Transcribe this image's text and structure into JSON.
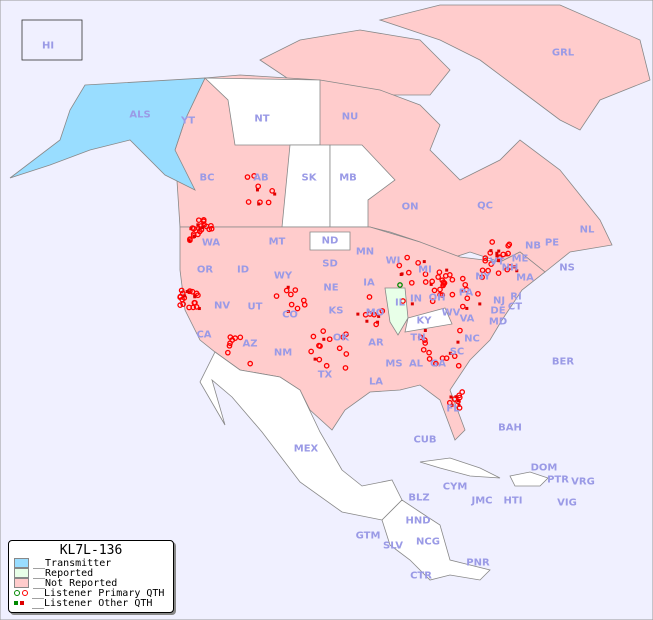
{
  "colors": {
    "ocean": "#f0f0ff",
    "transmitter": "#99ddff",
    "reported": "#e8ffe8",
    "not_reported": "#ffcccc",
    "none": "#ffffff",
    "primary_marker": "#ff0000",
    "other_marker": "#dd0000",
    "primary_marker_reporter": "#008800",
    "label": "#9a9ae6"
  },
  "legend": {
    "title": "KL7L-136",
    "items": [
      {
        "label": "__Transmitter",
        "kind": "swatch",
        "color": "#99ddff"
      },
      {
        "label": "__Reported",
        "kind": "swatch",
        "color": "#e8ffe8"
      },
      {
        "label": "__Not Reported",
        "kind": "swatch",
        "color": "#ffcccc"
      },
      {
        "label": "__Listener Primary QTH",
        "kind": "circle"
      },
      {
        "label": "__Listener Other QTH",
        "kind": "square"
      }
    ]
  },
  "regions": [
    {
      "code": "HI",
      "status": "not_reported"
    },
    {
      "code": "ALS",
      "status": "transmitter"
    },
    {
      "code": "YT",
      "status": "not_reported"
    },
    {
      "code": "NT",
      "status": "none"
    },
    {
      "code": "NU",
      "status": "not_reported"
    },
    {
      "code": "GRL",
      "status": "not_reported"
    },
    {
      "code": "BC",
      "status": "not_reported"
    },
    {
      "code": "AB",
      "status": "not_reported"
    },
    {
      "code": "SK",
      "status": "none"
    },
    {
      "code": "MB",
      "status": "none"
    },
    {
      "code": "ON",
      "status": "not_reported"
    },
    {
      "code": "QC",
      "status": "not_reported"
    },
    {
      "code": "NL",
      "status": "not_reported"
    },
    {
      "code": "PE",
      "status": "not_reported"
    },
    {
      "code": "NB",
      "status": "not_reported"
    },
    {
      "code": "NS",
      "status": "not_reported"
    },
    {
      "code": "ME",
      "status": "not_reported"
    },
    {
      "code": "VT",
      "status": "not_reported"
    },
    {
      "code": "NH",
      "status": "not_reported"
    },
    {
      "code": "MA",
      "status": "not_reported"
    },
    {
      "code": "NY",
      "status": "not_reported"
    },
    {
      "code": "RI",
      "status": "not_reported"
    },
    {
      "code": "CT",
      "status": "not_reported"
    },
    {
      "code": "NJ",
      "status": "not_reported"
    },
    {
      "code": "DE",
      "status": "not_reported"
    },
    {
      "code": "MD",
      "status": "not_reported"
    },
    {
      "code": "PA",
      "status": "not_reported"
    },
    {
      "code": "VA",
      "status": "not_reported"
    },
    {
      "code": "WV",
      "status": "not_reported"
    },
    {
      "code": "OH",
      "status": "not_reported"
    },
    {
      "code": "IN",
      "status": "not_reported"
    },
    {
      "code": "IL",
      "status": "reported"
    },
    {
      "code": "KY",
      "status": "none"
    },
    {
      "code": "MI",
      "status": "not_reported"
    },
    {
      "code": "WI",
      "status": "not_reported"
    },
    {
      "code": "MN",
      "status": "not_reported"
    },
    {
      "code": "ND",
      "status": "none"
    },
    {
      "code": "SD",
      "status": "not_reported"
    },
    {
      "code": "NE",
      "status": "not_reported"
    },
    {
      "code": "IA",
      "status": "not_reported"
    },
    {
      "code": "MO",
      "status": "not_reported"
    },
    {
      "code": "KS",
      "status": "not_reported"
    },
    {
      "code": "OK",
      "status": "not_reported"
    },
    {
      "code": "AR",
      "status": "not_reported"
    },
    {
      "code": "TN",
      "status": "not_reported"
    },
    {
      "code": "NC",
      "status": "not_reported"
    },
    {
      "code": "SC",
      "status": "not_reported"
    },
    {
      "code": "GA",
      "status": "not_reported"
    },
    {
      "code": "AL",
      "status": "not_reported"
    },
    {
      "code": "MS",
      "status": "not_reported"
    },
    {
      "code": "LA",
      "status": "not_reported"
    },
    {
      "code": "TX",
      "status": "not_reported"
    },
    {
      "code": "NM",
      "status": "not_reported"
    },
    {
      "code": "AZ",
      "status": "not_reported"
    },
    {
      "code": "UT",
      "status": "not_reported"
    },
    {
      "code": "CO",
      "status": "not_reported"
    },
    {
      "code": "WY",
      "status": "not_reported"
    },
    {
      "code": "MT",
      "status": "not_reported"
    },
    {
      "code": "ID",
      "status": "not_reported"
    },
    {
      "code": "WA",
      "status": "not_reported"
    },
    {
      "code": "OR",
      "status": "not_reported"
    },
    {
      "code": "NV",
      "status": "not_reported"
    },
    {
      "code": "CA",
      "status": "not_reported"
    },
    {
      "code": "FL",
      "status": "not_reported"
    },
    {
      "code": "BER",
      "status": "none"
    },
    {
      "code": "BAH",
      "status": "none"
    },
    {
      "code": "CUB",
      "status": "none"
    },
    {
      "code": "MEX",
      "status": "none"
    },
    {
      "code": "DOM",
      "status": "none"
    },
    {
      "code": "PTR",
      "status": "not_reported"
    },
    {
      "code": "VRG",
      "status": "none"
    },
    {
      "code": "CYM",
      "status": "none"
    },
    {
      "code": "JMC",
      "status": "none"
    },
    {
      "code": "HTI",
      "status": "none"
    },
    {
      "code": "VIG",
      "status": "none"
    },
    {
      "code": "BLZ",
      "status": "none"
    },
    {
      "code": "HND",
      "status": "none"
    },
    {
      "code": "GTM",
      "status": "none"
    },
    {
      "code": "SLV",
      "status": "none"
    },
    {
      "code": "NCG",
      "status": "none"
    },
    {
      "code": "CTR",
      "status": "none"
    },
    {
      "code": "PNR",
      "status": "none"
    }
  ]
}
